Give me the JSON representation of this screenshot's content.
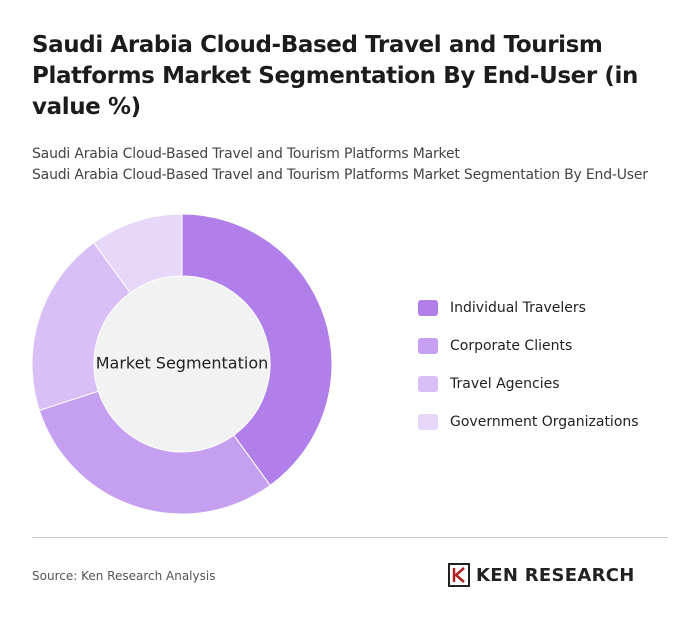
{
  "chart_data": {
    "type": "donut",
    "title": "Saudi Arabia Cloud-Based Travel and Tourism Platforms Market Segmentation By End-User (in value %)",
    "subtitle": [
      "Saudi Arabia Cloud-Based Travel and Tourism Platforms Market",
      "Saudi Arabia Cloud-Based Travel and Tourism Platforms Market Segmentation By End-User"
    ],
    "center_label": "Market Segmentation",
    "categories": [
      "Individual Travelers",
      "Corporate Clients",
      "Travel Agencies",
      "Government Organizations"
    ],
    "values": [
      40,
      30,
      20,
      10
    ],
    "colors": [
      "#b07fea",
      "#c5a0f1",
      "#d8bff6",
      "#e7d8f9"
    ],
    "source": "Source: Ken Research Analysis",
    "brand": "KEN RESEARCH"
  }
}
